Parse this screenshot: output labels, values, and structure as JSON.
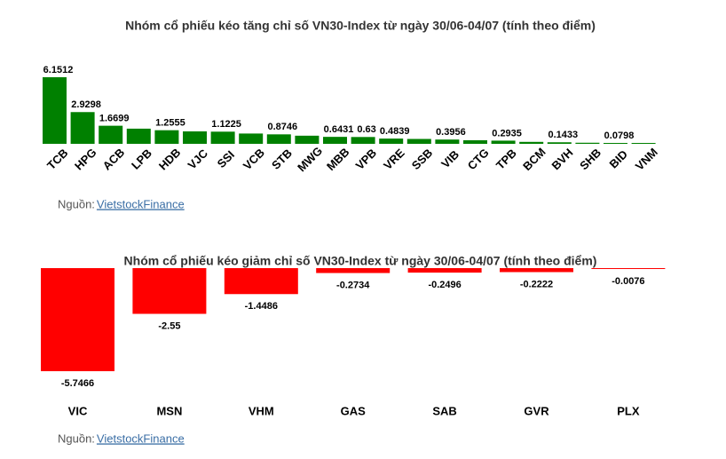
{
  "chart_data": [
    {
      "type": "bar",
      "title": "Nhóm cổ phiếu kéo tăng chỉ số VN30-Index từ ngày 30/06-04/07 (tính theo điểm)",
      "categories": [
        "TCB",
        "HPG",
        "ACB",
        "LPB",
        "HDB",
        "VJC",
        "SSI",
        "VCB",
        "STB",
        "MWG",
        "MBB",
        "VPB",
        "VRE",
        "SSB",
        "VIB",
        "CTG",
        "TPB",
        "BCM",
        "BVH",
        "SHB",
        "BID",
        "VNM"
      ],
      "values": [
        6.1512,
        2.9298,
        1.6699,
        1.4,
        1.2555,
        1.15,
        1.1225,
        0.95,
        0.8746,
        0.75,
        0.6431,
        0.63,
        0.4839,
        0.45,
        0.3956,
        0.33,
        0.2935,
        0.18,
        0.1433,
        0.1,
        0.0798,
        0.05
      ],
      "value_labels": [
        "6.1512",
        "2.9298",
        "1.6699",
        null,
        "1.2555",
        null,
        "1.1225",
        null,
        "0.8746",
        null,
        "0.6431",
        "0.63",
        "0.4839",
        null,
        "0.3956",
        null,
        "0.2935",
        null,
        "0.1433",
        null,
        "0.0798",
        null
      ],
      "color": "#008000",
      "source_prefix": "Nguồn: ",
      "source_link": "VietstockFinance"
    },
    {
      "type": "bar",
      "title": "Nhóm cổ phiếu kéo giảm chỉ số VN30-Index từ ngày 30/06-04/07 (tính theo điểm)",
      "categories": [
        "VIC",
        "MSN",
        "VHM",
        "GAS",
        "SAB",
        "GVR",
        "PLX"
      ],
      "values": [
        -5.7466,
        -2.55,
        -1.4486,
        -0.2734,
        -0.2496,
        -0.2222,
        -0.0076
      ],
      "color": "#ff0000",
      "source_prefix": "Nguồn: ",
      "source_link": "VietstockFinance"
    }
  ]
}
